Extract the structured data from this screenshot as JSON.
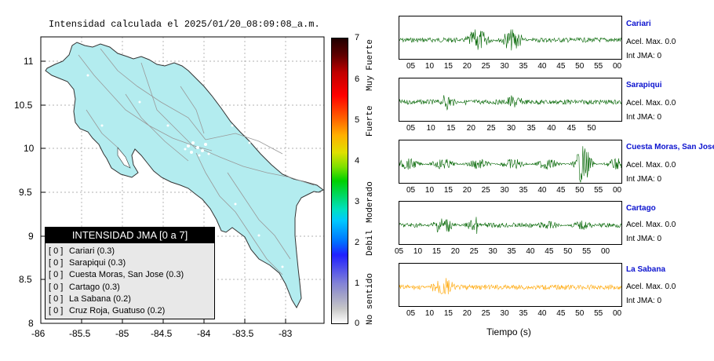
{
  "map": {
    "title": "Intensidad calculada el 2025/01/20_08:09:08_a.m.",
    "lon_ticks": [
      "-86",
      "-85.5",
      "-85",
      "-84.5",
      "-84",
      "-83.5",
      "-83"
    ],
    "lat_ticks": [
      "11",
      "10.5",
      "10",
      "9.5",
      "9",
      "8.5",
      "8"
    ],
    "land_color": "#b3ecef",
    "legend": {
      "title": "INTENSIDAD JMA [0 a 7]",
      "items": [
        {
          "level": "[ 0 ]",
          "label": "Cariari (0.3)"
        },
        {
          "level": "[ 0 ]",
          "label": "Sarapiqui (0.3)"
        },
        {
          "level": "[ 0 ]",
          "label": "Cuesta Moras, San Jose (0.3)"
        },
        {
          "level": "[ 0 ]",
          "label": "Cartago (0.3)"
        },
        {
          "level": "[ 0 ]",
          "label": "La Sabana (0.2)"
        },
        {
          "level": "[ 0 ]",
          "label": "Cruz Roja, Guatuso (0.2)"
        }
      ]
    }
  },
  "colorbar": {
    "ticks": [
      "7",
      "6",
      "5",
      "4",
      "3",
      "2",
      "1",
      "0"
    ],
    "words": [
      "Muy Fuerte",
      "Fuerte",
      "Moderado",
      "Debil",
      "No sentido"
    ]
  },
  "stations": [
    {
      "name": "Cariari",
      "acel": "Acel. Max. 0.0",
      "int": "Int JMA: 0",
      "color": "#006400",
      "ticks": [
        "05",
        "10",
        "15",
        "20",
        "25",
        "30",
        "35",
        "40",
        "45",
        "50",
        "55",
        "00"
      ]
    },
    {
      "name": "Sarapiqui",
      "acel": "Acel. Max. 0.0",
      "int": "Int JMA: 0",
      "color": "#006400",
      "ticks": [
        "05",
        "10",
        "15",
        "20",
        "25",
        "30",
        "35",
        "40",
        "45",
        "50"
      ]
    },
    {
      "name": "Cuesta Moras, San Jose",
      "acel": "Acel. Max. 0.0",
      "int": "Int JMA: 0",
      "color": "#006400",
      "ticks": [
        "05",
        "10",
        "15",
        "20",
        "25",
        "30",
        "35",
        "40",
        "45",
        "50",
        "55",
        "00"
      ]
    },
    {
      "name": "Cartago",
      "acel": "Acel. Max. 0.0",
      "int": "Int JMA: 0",
      "color": "#006400",
      "ticks": [
        "05",
        "10",
        "15",
        "20",
        "25",
        "30",
        "35",
        "40",
        "45",
        "50",
        "55",
        "00"
      ]
    },
    {
      "name": "La Sabana",
      "acel": "Acel. Max. 0.0",
      "int": "Int JMA: 0",
      "color": "#ffa500",
      "ticks": [
        "05",
        "10",
        "15",
        "20",
        "25",
        "30",
        "35",
        "40",
        "45",
        "50",
        "55",
        "00"
      ]
    }
  ],
  "xaxis_label": "Tiempo (s)"
}
